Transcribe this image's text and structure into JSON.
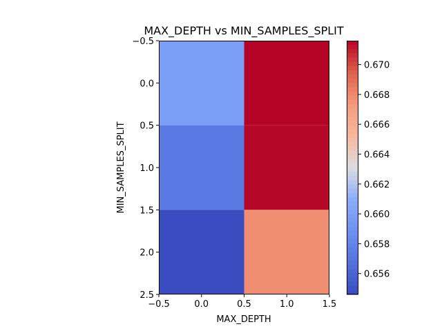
{
  "chart_data": {
    "type": "heatmap",
    "title": "MAX_DEPTH vs MIN_SAMPLES_SPLIT",
    "xlabel": "MAX_DEPTH",
    "ylabel": "MIN_SAMPLES_SPLIT",
    "colormap": "coolwarm",
    "xlim": [
      -0.5,
      1.5
    ],
    "ylim": [
      2.5,
      -0.5
    ],
    "x_ticks": [
      "-0.5",
      "0.0",
      "0.5",
      "1.0",
      "1.5"
    ],
    "y_ticks": [
      "-0.5",
      "0.0",
      "0.5",
      "1.0",
      "1.5",
      "2.0",
      "2.5"
    ],
    "values": [
      [
        0.6598,
        0.6716
      ],
      [
        0.6573,
        0.6715
      ],
      [
        0.6546,
        0.6678
      ]
    ],
    "colorbar": {
      "min": 0.6546,
      "max": 0.6716,
      "ticks": [
        "0.656",
        "0.658",
        "0.660",
        "0.662",
        "0.664",
        "0.666",
        "0.668",
        "0.670"
      ]
    }
  }
}
